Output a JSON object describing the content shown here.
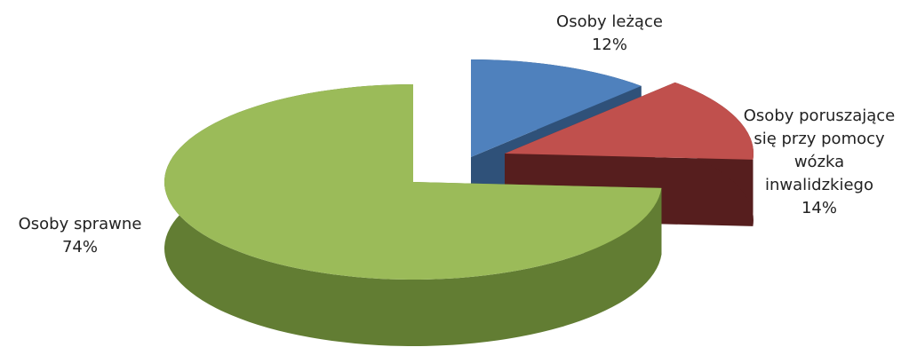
{
  "chart_data": {
    "type": "pie",
    "categories": [
      "Osoby leżące",
      "Osoby poruszające się przy pomocy wózka inwalidzkiego",
      "Osoby sprawne"
    ],
    "values": [
      12,
      14,
      74
    ],
    "value_labels": [
      "12%",
      "14%",
      "74%"
    ],
    "colors": [
      "#4f81bd",
      "#c0504d",
      "#9bbb59"
    ],
    "side_colors": [
      "#2f5179",
      "#561e1e",
      "#627d33"
    ]
  }
}
